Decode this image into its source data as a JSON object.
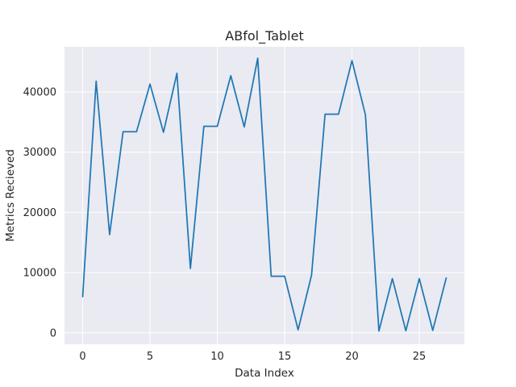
{
  "chart_data": {
    "type": "line",
    "title": "ABfol_Tablet",
    "xlabel": "Data Index",
    "ylabel": "Metrics Recieved",
    "xlim": [
      -1.35,
      28.35
    ],
    "ylim": [
      -1900,
      47500
    ],
    "xticks": [
      0,
      5,
      10,
      15,
      20,
      25
    ],
    "yticks": [
      0,
      10000,
      20000,
      30000,
      40000
    ],
    "grid": true,
    "legend": "none",
    "colors": {
      "background": "#eaeaf2",
      "grid": "#ffffff",
      "line": "#1f77b4"
    },
    "x": [
      0,
      1,
      2,
      3,
      4,
      5,
      6,
      7,
      8,
      9,
      10,
      11,
      12,
      13,
      14,
      15,
      16,
      17,
      18,
      19,
      20,
      21,
      22,
      23,
      24,
      25,
      26,
      27
    ],
    "series": [
      {
        "values": [
          6000,
          41800,
          16300,
          33400,
          33400,
          41300,
          33300,
          43100,
          10700,
          34300,
          34300,
          42700,
          34200,
          45600,
          9400,
          9400,
          500,
          9600,
          36300,
          36300,
          45200,
          36200,
          300,
          9000,
          350,
          9000,
          400,
          9100
        ]
      }
    ]
  }
}
